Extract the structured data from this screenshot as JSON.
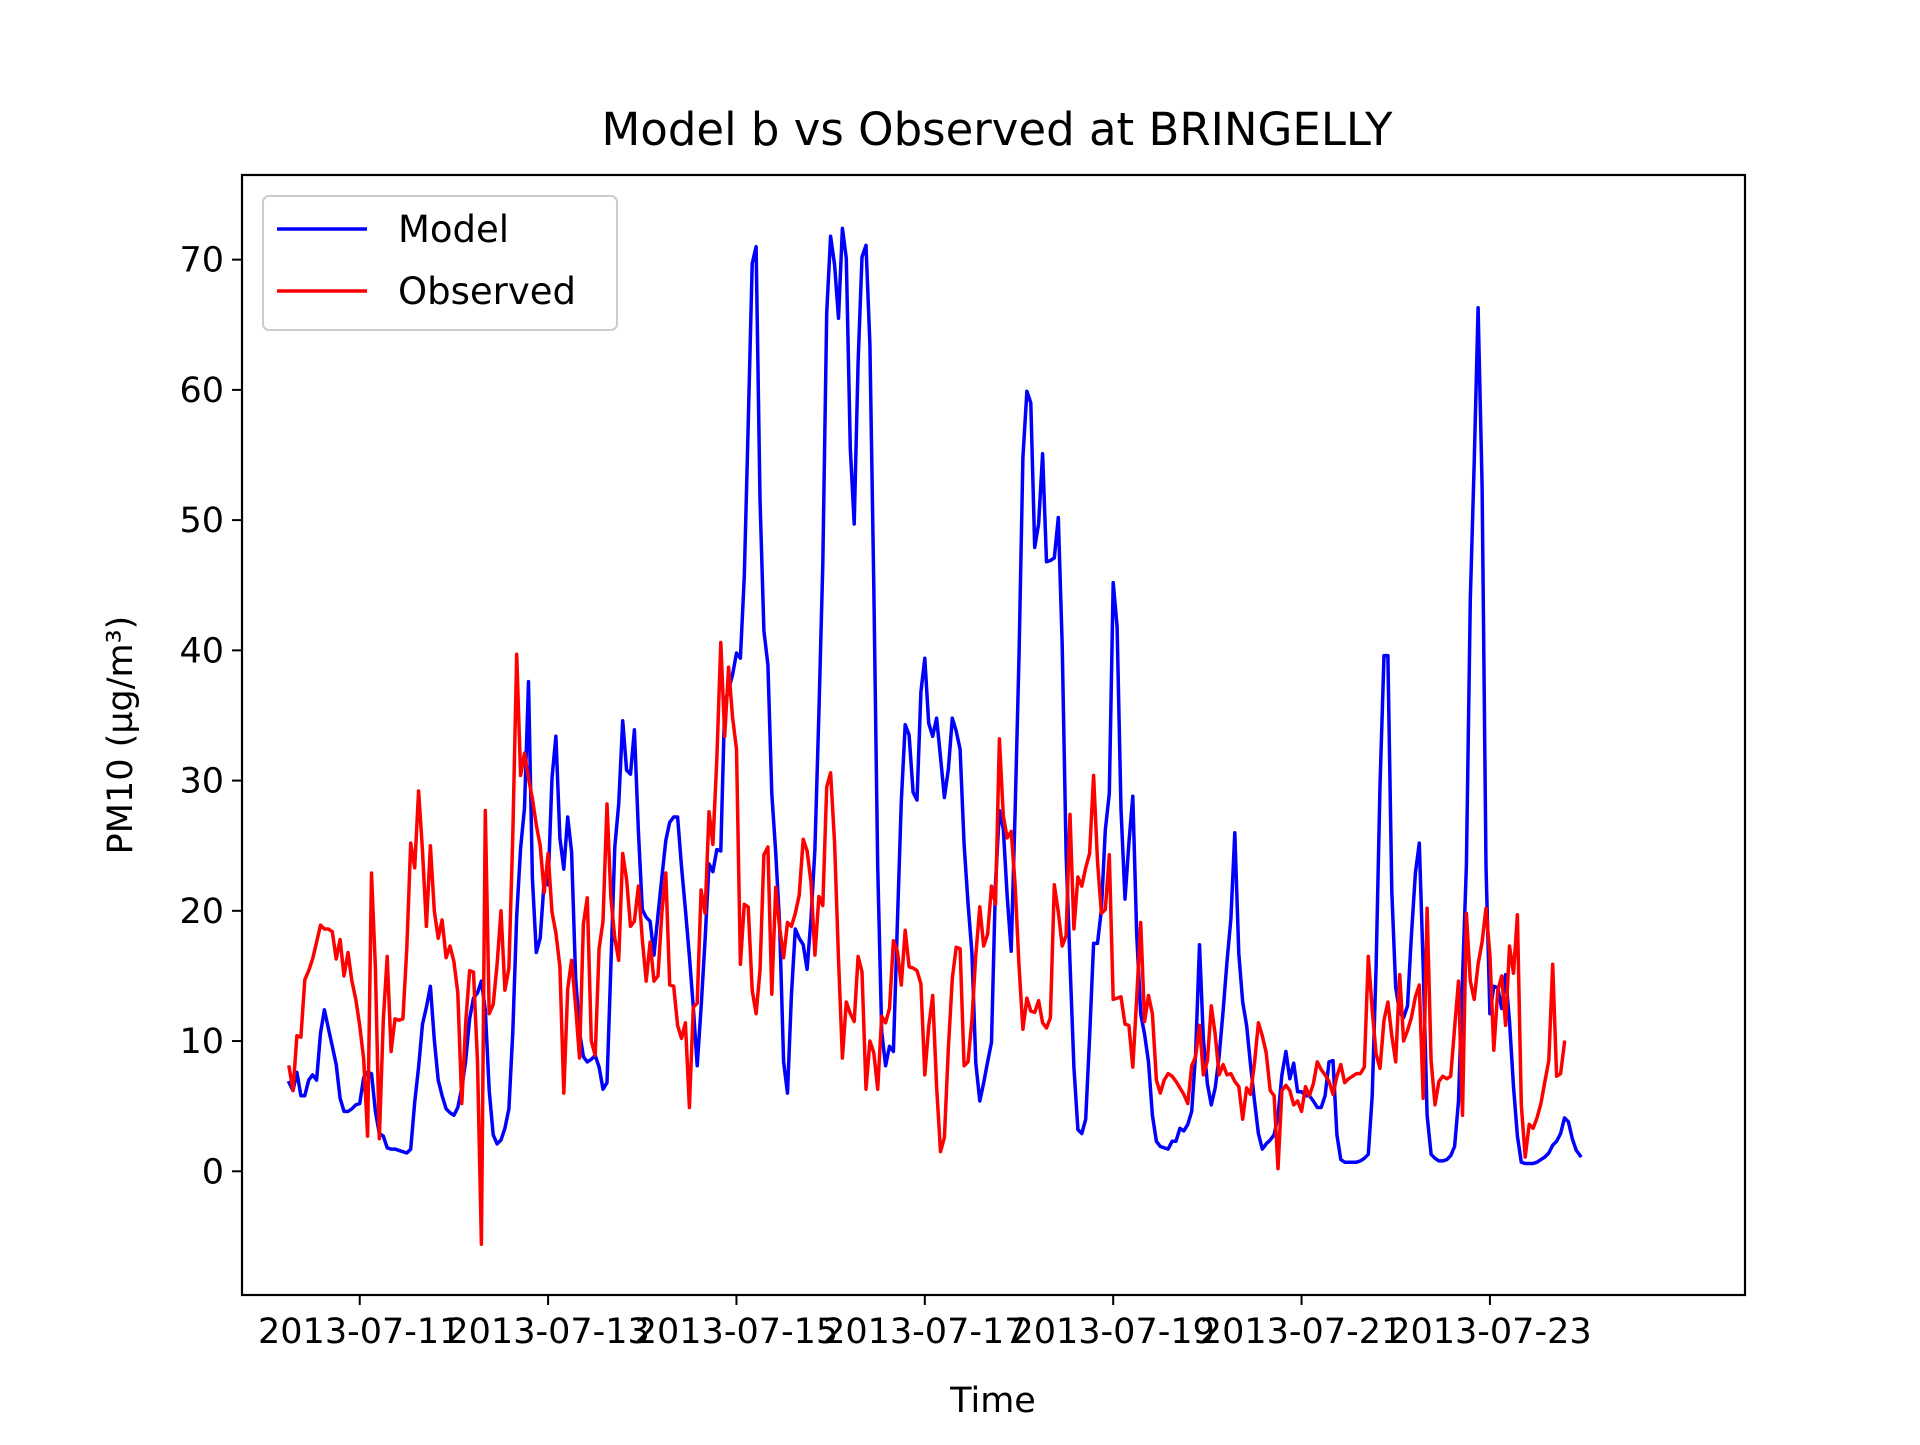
{
  "chart_data": {
    "type": "line",
    "title": "Model b vs Observed at BRINGELLY",
    "xlabel": "Time",
    "ylabel": "PM10 (µg/m³)",
    "xlim": [
      "2013-07-09 18:00",
      "2013-07-25 17:00"
    ],
    "ylim": [
      -9.5,
      76.5
    ],
    "grid": false,
    "legend": "top-left",
    "x_ticks": [
      "2013-07-11",
      "2013-07-13",
      "2013-07-15",
      "2013-07-17",
      "2013-07-19",
      "2013-07-21",
      "2013-07-23"
    ],
    "y_ticks": [
      0,
      10,
      20,
      30,
      40,
      50,
      60,
      70
    ],
    "x_start": "2013-07-10 06:00",
    "x_step_hours": 1,
    "series": [
      {
        "name": "Model",
        "color": "#0000ff",
        "values": [
          6.8,
          6.2,
          7.6,
          5.8,
          5.8,
          7.0,
          7.4,
          7.0,
          10.6,
          12.4,
          11.0,
          9.6,
          8.2,
          5.6,
          4.6,
          4.6,
          4.8,
          5.1,
          5.2,
          7.2,
          7.6,
          7.5,
          4.6,
          2.9,
          2.7,
          1.8,
          1.7,
          1.7,
          1.6,
          1.5,
          1.4,
          1.7,
          5.3,
          8.0,
          11.3,
          12.6,
          14.2,
          10.1,
          7.0,
          5.8,
          4.8,
          4.5,
          4.3,
          4.9,
          6.4,
          8.5,
          11.7,
          13.3,
          13.7,
          14.6,
          12.4,
          6.2,
          2.8,
          2.1,
          2.4,
          3.3,
          4.8,
          10.7,
          19.6,
          24.8,
          27.9,
          37.6,
          22.5,
          16.8,
          17.9,
          22.3,
          22.0,
          30.2,
          33.4,
          25.6,
          23.2,
          27.2,
          24.5,
          14.9,
          10.7,
          8.8,
          8.4,
          8.6,
          8.9,
          8.0,
          6.3,
          6.8,
          15.8,
          24.9,
          28.2,
          34.6,
          30.8,
          30.5,
          33.9,
          26.1,
          20.1,
          19.5,
          19.2,
          16.6,
          19.7,
          22.6,
          25.4,
          26.8,
          27.2,
          27.2,
          23.4,
          20.1,
          16.5,
          12.6,
          8.1,
          12.6,
          17.8,
          23.6,
          23.0,
          24.7,
          24.6,
          35.9,
          37.0,
          38.1,
          39.8,
          39.4,
          45.7,
          57.3,
          69.7,
          71.0,
          51.6,
          41.5,
          38.9,
          29.0,
          24.5,
          19.0,
          8.4,
          6.0,
          13.5,
          18.6,
          17.9,
          17.4,
          15.5,
          19.4,
          24.7,
          35.2,
          46.6,
          65.9,
          71.8,
          69.6,
          65.5,
          72.4,
          70.1,
          55.5,
          49.7,
          62.1,
          70.2,
          71.1,
          63.5,
          44.9,
          23.4,
          10.7,
          8.1,
          9.6,
          9.2,
          19.1,
          28.4,
          34.3,
          33.5,
          29.1,
          28.5,
          36.8,
          39.4,
          34.4,
          33.4,
          34.8,
          31.8,
          28.7,
          30.9,
          34.8,
          33.8,
          32.4,
          25.1,
          20.6,
          16.8,
          8.3,
          5.4,
          6.8,
          8.4,
          9.9,
          22.1,
          27.7,
          26.3,
          21.1,
          16.9,
          27.6,
          39.5,
          54.8,
          59.9,
          59.0,
          47.9,
          49.7,
          55.1,
          46.8,
          46.9,
          47.1,
          50.2,
          40.4,
          24.4,
          16.0,
          8.0,
          3.2,
          2.9,
          4.0,
          10.3,
          17.5,
          17.5,
          20.1,
          26.2,
          29.0,
          45.2,
          41.8,
          27.8,
          20.9,
          25.2,
          28.8,
          18.2,
          12.1,
          10.5,
          8.4,
          4.3,
          2.3,
          1.9,
          1.8,
          1.7,
          2.3,
          2.3,
          3.3,
          3.1,
          3.6,
          4.6,
          9.0,
          17.4,
          10.1,
          6.7,
          5.1,
          6.4,
          8.8,
          12.3,
          16.1,
          19.4,
          26.0,
          16.7,
          13.0,
          11.2,
          8.2,
          5.4,
          2.9,
          1.7,
          2.1,
          2.4,
          2.8,
          4.2,
          7.4,
          9.2,
          7.1,
          8.3,
          6.1,
          6.1,
          5.8,
          5.8,
          5.4,
          4.9,
          4.9,
          5.8,
          8.4,
          8.5,
          2.8,
          0.9,
          0.7,
          0.7,
          0.7,
          0.7,
          0.8,
          1.0,
          1.3,
          5.8,
          15.7,
          29.6,
          39.6,
          39.6,
          21.5,
          14.1,
          12.2,
          11.8,
          12.7,
          18.1,
          22.9,
          25.2,
          15.7,
          4.3,
          1.3,
          1.0,
          0.8,
          0.8,
          0.9,
          1.2,
          1.9,
          5.4,
          14.7,
          23.5,
          43.9,
          54.4,
          66.3,
          52.6,
          23.4,
          12.1,
          14.2,
          14.1,
          12.5,
          15.1,
          11.5,
          6.5,
          2.7,
          0.7,
          0.6,
          0.6,
          0.6,
          0.7,
          0.9,
          1.1,
          1.4,
          2.0,
          2.3,
          2.9,
          4.1,
          3.8,
          2.5,
          1.6,
          1.2
        ]
      },
      {
        "name": "Observed",
        "color": "#ff0000",
        "values": [
          8.0,
          6.2,
          10.4,
          10.3,
          14.7,
          15.4,
          16.3,
          17.6,
          18.9,
          18.6,
          18.6,
          18.4,
          16.3,
          17.8,
          15.0,
          16.8,
          14.6,
          13.2,
          11.2,
          8.6,
          2.7,
          22.9,
          15.6,
          2.5,
          11.6,
          16.5,
          9.2,
          11.7,
          11.6,
          11.7,
          17.1,
          25.2,
          23.3,
          29.2,
          24.6,
          18.8,
          25.0,
          20.0,
          17.9,
          19.3,
          16.4,
          17.3,
          16.1,
          13.7,
          5.2,
          11.4,
          15.4,
          15.3,
          8.4,
          -5.6,
          27.7,
          12.1,
          12.8,
          15.9,
          20.0,
          13.9,
          15.6,
          25.8,
          39.7,
          30.4,
          32.1,
          30.2,
          28.6,
          26.6,
          25.0,
          21.4,
          24.4,
          19.9,
          18.3,
          15.7,
          6.0,
          14.0,
          16.2,
          12.7,
          8.7,
          19.0,
          21.0,
          10.0,
          8.9,
          17.1,
          19.2,
          28.2,
          21.0,
          17.9,
          16.2,
          24.4,
          22.4,
          18.8,
          19.2,
          21.9,
          17.8,
          14.6,
          17.6,
          14.6,
          15.0,
          19.9,
          22.9,
          14.3,
          14.2,
          11.2,
          10.2,
          11.4,
          4.9,
          12.6,
          12.9,
          21.6,
          19.8,
          27.6,
          25.1,
          31.6,
          40.6,
          33.4,
          38.7,
          34.9,
          32.4,
          15.9,
          20.5,
          20.3,
          13.9,
          12.1,
          15.4,
          24.3,
          24.9,
          13.6,
          21.8,
          18.7,
          16.4,
          19.1,
          18.8,
          19.8,
          21.2,
          25.5,
          24.6,
          22.2,
          16.6,
          21.1,
          20.4,
          29.5,
          30.6,
          25.2,
          16.3,
          8.7,
          13.0,
          12.1,
          11.5,
          16.5,
          15.3,
          6.3,
          10.0,
          9.1,
          6.3,
          11.9,
          11.4,
          12.5,
          17.7,
          16.9,
          14.3,
          18.5,
          15.7,
          15.6,
          15.4,
          14.4,
          7.4,
          11.1,
          13.5,
          6.5,
          1.5,
          2.6,
          9.5,
          14.8,
          17.2,
          17.1,
          8.1,
          8.4,
          11.6,
          16.6,
          20.3,
          17.3,
          18.2,
          21.9,
          20.5,
          33.2,
          27.3,
          25.6,
          26.1,
          22.0,
          15.8,
          10.9,
          13.3,
          12.3,
          12.2,
          13.1,
          11.4,
          11.0,
          11.8,
          22.0,
          19.9,
          17.3,
          18.1,
          27.4,
          18.6,
          22.6,
          21.9,
          23.3,
          24.4,
          30.4,
          23.8,
          19.8,
          20.1,
          24.3,
          13.2,
          13.3,
          13.4,
          11.3,
          11.2,
          8.0,
          13.3,
          19.1,
          11.5,
          13.5,
          12.1,
          7.0,
          6.0,
          7.0,
          7.5,
          7.3,
          6.9,
          6.4,
          5.9,
          5.2,
          8.1,
          8.8,
          11.2,
          7.4,
          8.5,
          12.7,
          10.5,
          7.4,
          8.2,
          7.4,
          7.5,
          6.9,
          6.5,
          4.0,
          6.4,
          5.9,
          8.3,
          11.4,
          10.4,
          9.1,
          6.2,
          5.8,
          0.2,
          6.2,
          6.6,
          6.2,
          5.1,
          5.4,
          4.6,
          6.5,
          5.8,
          6.7,
          8.4,
          7.8,
          7.4,
          6.9,
          5.9,
          7.3,
          8.2,
          6.8,
          7.1,
          7.3,
          7.5,
          7.5,
          8.0,
          16.5,
          12.4,
          9.0,
          7.9,
          11.6,
          13.0,
          10.4,
          8.4,
          15.1,
          10.0,
          10.8,
          11.8,
          13.4,
          14.3,
          5.6,
          20.2,
          8.5,
          5.1,
          6.9,
          7.3,
          7.1,
          7.3,
          11.0,
          14.6,
          4.3,
          19.8,
          14.6,
          13.2,
          15.9,
          17.6,
          20.2,
          16.6,
          9.3,
          13.9,
          15.0,
          11.2,
          17.3,
          15.2,
          19.7,
          5.1,
          1.1,
          3.6,
          3.3,
          4.1,
          5.2,
          6.9,
          8.5,
          15.9,
          7.3,
          7.5,
          9.9
        ]
      }
    ]
  }
}
